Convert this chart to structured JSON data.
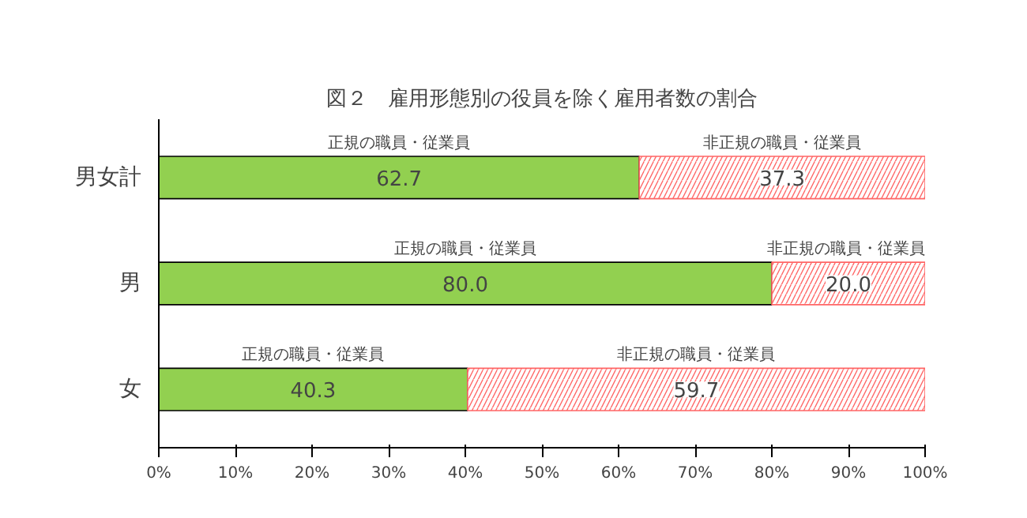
{
  "chart_data": {
    "type": "bar",
    "orientation": "horizontal",
    "stacked": true,
    "title": "図２　雇用形態別の役員を除く雇用者数の割合",
    "categories": [
      "男女計",
      "男",
      "女"
    ],
    "series": [
      {
        "name": "正規の職員・従業員",
        "color": "#92d050",
        "values": [
          62.7,
          80.0,
          40.3
        ],
        "value_labels": [
          "62.7",
          "80.0",
          "40.3"
        ]
      },
      {
        "name": "非正規の職員・従業員",
        "color": "#ff6666",
        "values": [
          37.3,
          20.0,
          59.7
        ],
        "value_labels": [
          "37.3",
          "20.0",
          "59.7"
        ]
      }
    ],
    "xlim": [
      0,
      100
    ],
    "xticks": [
      {
        "value": 0,
        "label": "0%"
      },
      {
        "value": 10,
        "label": "10%"
      },
      {
        "value": 20,
        "label": "20%"
      },
      {
        "value": 30,
        "label": "30%"
      },
      {
        "value": 40,
        "label": "40%"
      },
      {
        "value": 50,
        "label": "50%"
      },
      {
        "value": 60,
        "label": "60%"
      },
      {
        "value": 70,
        "label": "70%"
      },
      {
        "value": 80,
        "label": "80%"
      },
      {
        "value": 90,
        "label": "90%"
      },
      {
        "value": 100,
        "label": "100%"
      }
    ],
    "grid": false
  }
}
